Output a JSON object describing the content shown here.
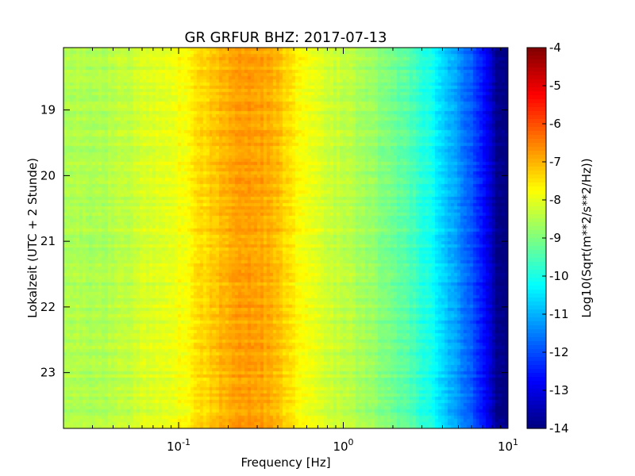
{
  "chart_data": {
    "type": "heatmap",
    "title": "GR GRFUR BHZ: 2017-07-13",
    "xlabel": "Frequency [Hz]",
    "ylabel": "Lokalzeit (UTC + 2 Stunde)",
    "x_scale": "log",
    "xlim": [
      0.02,
      10
    ],
    "ylim": [
      23.85,
      18.05
    ],
    "x_ticks": [
      {
        "value": 0.1,
        "base": "10",
        "exp": "-1"
      },
      {
        "value": 1,
        "base": "10",
        "exp": "0"
      },
      {
        "value": 10,
        "base": "10",
        "exp": "1"
      }
    ],
    "y_ticks": [
      {
        "value": 19,
        "label": "19"
      },
      {
        "value": 20,
        "label": "20"
      },
      {
        "value": 21,
        "label": "21"
      },
      {
        "value": 22,
        "label": "22"
      },
      {
        "value": 23,
        "label": "23"
      }
    ],
    "colorbar": {
      "label": "Log10(Sqrt(m**2/s**2/Hz))",
      "min": -14,
      "max": -4,
      "colormap": "jet",
      "ticks": [
        "-4",
        "-5",
        "-6",
        "-7",
        "-8",
        "-9",
        "-10",
        "-11",
        "-12",
        "-13",
        "-14"
      ]
    },
    "mean_spectrum": {
      "frequency_hz": [
        0.02,
        0.04,
        0.06,
        0.08,
        0.11,
        0.13,
        0.16,
        0.2,
        0.25,
        0.3,
        0.35,
        0.42,
        0.5,
        0.6,
        0.7,
        0.85,
        1.0,
        1.3,
        1.6,
        2.0,
        2.5,
        3.0,
        3.5,
        4.0,
        4.5,
        5.0,
        6.0,
        7.0,
        8.0,
        8.5,
        9.0,
        10.0
      ],
      "log10_amplitude": [
        -8.6,
        -8.5,
        -8.2,
        -8.0,
        -7.8,
        -7.45,
        -7.2,
        -6.95,
        -6.8,
        -6.85,
        -6.95,
        -7.2,
        -7.6,
        -7.9,
        -8.1,
        -8.25,
        -8.4,
        -8.6,
        -8.85,
        -9.15,
        -9.45,
        -9.8,
        -10.2,
        -10.6,
        -11.0,
        -11.35,
        -11.9,
        -12.6,
        -13.3,
        -13.8,
        -14.0,
        -14.0
      ]
    }
  }
}
